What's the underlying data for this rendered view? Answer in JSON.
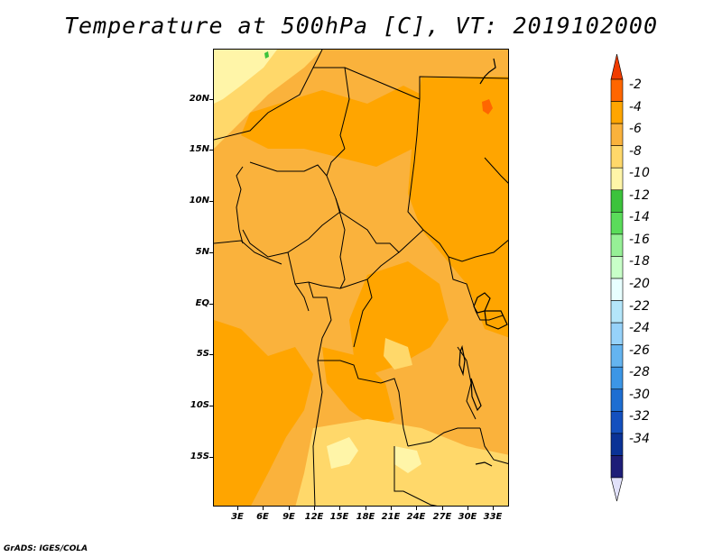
{
  "title": "Temperature at 500hPa [C], VT: 2019102000",
  "footer": "GrADS: IGES/COLA",
  "map": {
    "region": "Central Africa",
    "lat_labels": [
      "20N",
      "15N",
      "10N",
      "5N",
      "EQ",
      "5S",
      "10S",
      "15S"
    ],
    "lon_labels": [
      "3E",
      "6E",
      "9E",
      "12E",
      "15E",
      "18E",
      "21E",
      "24E",
      "27E",
      "30E",
      "33E"
    ],
    "fill_colors": {
      "minus4_to_minus6": "#ffa500",
      "minus6_to_minus8": "#fab23c",
      "minus8_to_minus10": "#ffd86a",
      "minus10_to_minus12": "#fff5a8",
      "minus2_to_minus4": "#ff6600",
      "minus12_to_minus14": "#3cc33c",
      "border": "#000000"
    }
  },
  "colorbar": {
    "labels": [
      "-2",
      "-4",
      "-6",
      "-8",
      "-10",
      "-12",
      "-14",
      "-16",
      "-18",
      "-20",
      "-22",
      "-24",
      "-26",
      "-28",
      "-30",
      "-32",
      "-34"
    ],
    "colors": [
      "#f03c00",
      "#ff6600",
      "#ffa500",
      "#fab23c",
      "#ffd86a",
      "#fff5a8",
      "#3cc33c",
      "#5adc5a",
      "#96f096",
      "#c8ffc8",
      "#e8ffff",
      "#b4e6fa",
      "#96d2fa",
      "#64b4f0",
      "#3c96e6",
      "#1e6ed2",
      "#1450be",
      "#0a3296",
      "#1e1e78",
      "#e1e1fa"
    ]
  }
}
